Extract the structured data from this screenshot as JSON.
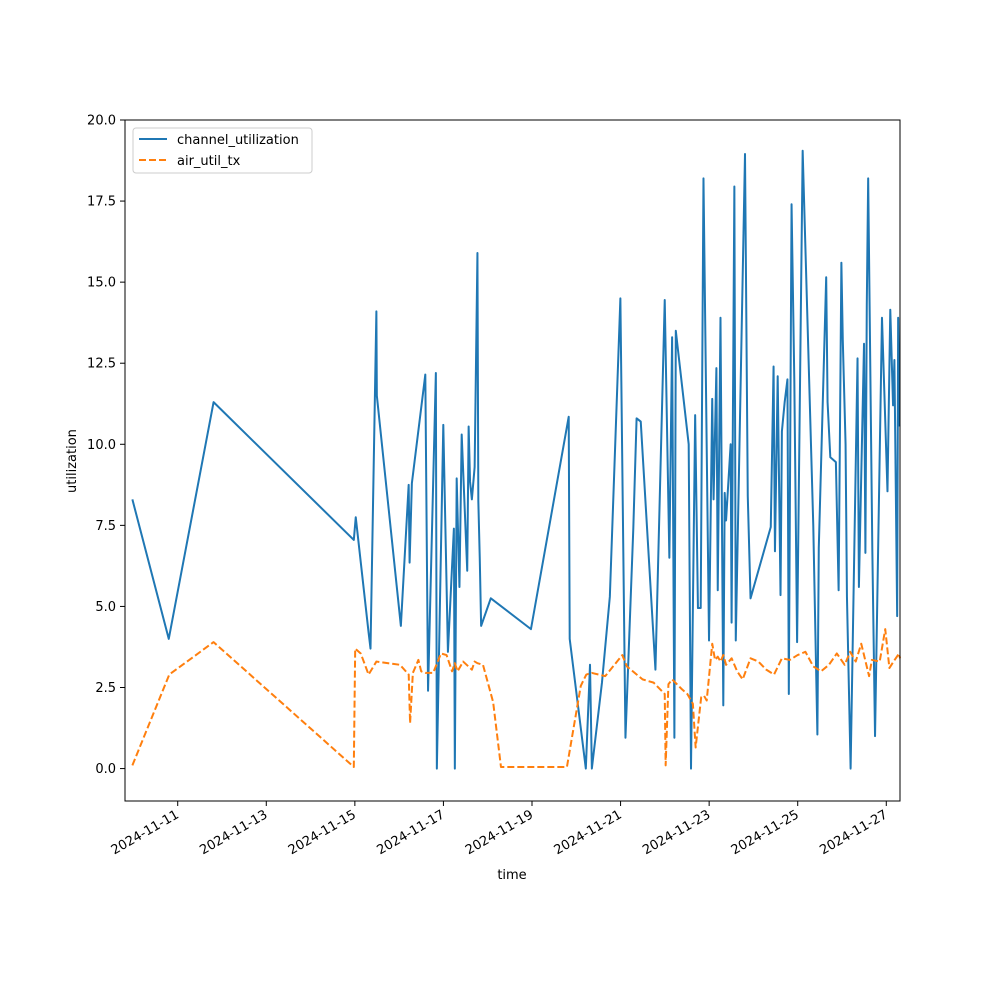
{
  "chart_data": {
    "type": "line",
    "xlabel": "time",
    "ylabel": "utilization",
    "xlim": [
      "2024-11-09T19:26",
      "2024-11-27T07:26"
    ],
    "ylim": [
      -1.0,
      20.0
    ],
    "x_ticks": [
      "2024-11-11",
      "2024-11-13",
      "2024-11-15",
      "2024-11-17",
      "2024-11-19",
      "2024-11-21",
      "2024-11-23",
      "2024-11-25",
      "2024-11-27"
    ],
    "y_ticks": [
      "0.0",
      "2.5",
      "5.0",
      "7.5",
      "10.0",
      "12.5",
      "15.0",
      "17.5",
      "20.0"
    ],
    "legend_position": "upper-left",
    "grid": false,
    "series": [
      {
        "name": "channel_utilization",
        "color": "#1f77b4",
        "dash": "solid",
        "points": [
          [
            "2024-11-09T23:26",
            8.3
          ],
          [
            "2024-11-10T19:09",
            4.0
          ],
          [
            "2024-11-11T19:26",
            11.3
          ],
          [
            "2024-11-14T23:26",
            7.05
          ],
          [
            "2024-11-15T00:29",
            7.75
          ],
          [
            "2024-11-15T07:26",
            4.2
          ],
          [
            "2024-11-15T08:29",
            3.7
          ],
          [
            "2024-11-15T11:40",
            14.1
          ],
          [
            "2024-11-15T11:55",
            11.5
          ],
          [
            "2024-11-16T00:56",
            4.4
          ],
          [
            "2024-11-16T05:10",
            8.75
          ],
          [
            "2024-11-16T05:40",
            6.35
          ],
          [
            "2024-11-16T06:54",
            8.8
          ],
          [
            "2024-11-16T14:11",
            12.15
          ],
          [
            "2024-11-16T15:40",
            2.4
          ],
          [
            "2024-11-16T19:54",
            12.2
          ],
          [
            "2024-11-16T20:26",
            0.0
          ],
          [
            "2024-11-16T23:56",
            10.6
          ],
          [
            "2024-11-17T02:26",
            3.6
          ],
          [
            "2024-11-17T05:40",
            7.4
          ],
          [
            "2024-11-17T06:11",
            0.0
          ],
          [
            "2024-11-17T07:11",
            8.95
          ],
          [
            "2024-11-17T08:41",
            5.6
          ],
          [
            "2024-11-17T09:54",
            10.3
          ],
          [
            "2024-11-17T12:54",
            6.1
          ],
          [
            "2024-11-17T13:40",
            10.55
          ],
          [
            "2024-11-17T14:26",
            8.85
          ],
          [
            "2024-11-17T15:25",
            8.3
          ],
          [
            "2024-11-17T16:55",
            9.3
          ],
          [
            "2024-11-17T18:26",
            15.9
          ],
          [
            "2024-11-17T18:55",
            8.25
          ],
          [
            "2024-11-17T19:41",
            6.5
          ],
          [
            "2024-11-17T20:26",
            4.4
          ],
          [
            "2024-11-18T01:40",
            5.25
          ],
          [
            "2024-11-18T23:26",
            4.3
          ],
          [
            "2024-11-19T19:54",
            10.85
          ],
          [
            "2024-11-19T20:26",
            4.0
          ],
          [
            "2024-11-20T05:10",
            0.0
          ],
          [
            "2024-11-20T07:26",
            3.2
          ],
          [
            "2024-11-20T08:26",
            0.0
          ],
          [
            "2024-11-20T13:55",
            2.65
          ],
          [
            "2024-11-20T18:11",
            5.3
          ],
          [
            "2024-11-20T23:54",
            14.5
          ],
          [
            "2024-11-21T02:39",
            0.95
          ],
          [
            "2024-11-21T06:54",
            7.4
          ],
          [
            "2024-11-21T08:41",
            10.8
          ],
          [
            "2024-11-21T10:56",
            10.7
          ],
          [
            "2024-11-21T18:54",
            3.05
          ],
          [
            "2024-11-21T23:56",
            14.45
          ],
          [
            "2024-11-22T02:26",
            6.5
          ],
          [
            "2024-11-22T03:56",
            13.3
          ],
          [
            "2024-11-22T05:10",
            0.95
          ],
          [
            "2024-11-22T05:56",
            13.5
          ],
          [
            "2024-11-22T12:55",
            10.0
          ],
          [
            "2024-11-22T14:10",
            0.0
          ],
          [
            "2024-11-22T16:25",
            10.9
          ],
          [
            "2024-11-22T17:56",
            4.95
          ],
          [
            "2024-11-22T19:26",
            4.95
          ],
          [
            "2024-11-22T20:56",
            18.2
          ],
          [
            "2024-11-22T23:56",
            3.95
          ],
          [
            "2024-11-23T01:40",
            11.4
          ],
          [
            "2024-11-23T02:24",
            8.3
          ],
          [
            "2024-11-23T03:56",
            12.35
          ],
          [
            "2024-11-23T04:40",
            5.5
          ],
          [
            "2024-11-23T06:09",
            13.9
          ],
          [
            "2024-11-23T07:40",
            1.95
          ],
          [
            "2024-11-23T08:26",
            8.5
          ],
          [
            "2024-11-23T09:10",
            7.65
          ],
          [
            "2024-11-23T11:39",
            10.0
          ],
          [
            "2024-11-23T12:10",
            4.5
          ],
          [
            "2024-11-23T13:40",
            17.95
          ],
          [
            "2024-11-23T14:26",
            3.95
          ],
          [
            "2024-11-23T19:26",
            18.95
          ],
          [
            "2024-11-23T20:56",
            8.4
          ],
          [
            "2024-11-23T22:26",
            5.25
          ],
          [
            "2024-11-24T09:24",
            7.45
          ],
          [
            "2024-11-24T10:55",
            12.4
          ],
          [
            "2024-11-24T11:40",
            6.7
          ],
          [
            "2024-11-24T13:09",
            12.1
          ],
          [
            "2024-11-24T14:41",
            5.35
          ],
          [
            "2024-11-24T15:26",
            10.4
          ],
          [
            "2024-11-24T16:56",
            11.3
          ],
          [
            "2024-11-24T18:26",
            12.0
          ],
          [
            "2024-11-24T19:11",
            2.3
          ],
          [
            "2024-11-24T20:40",
            17.4
          ],
          [
            "2024-11-24T22:09",
            12.0
          ],
          [
            "2024-11-24T23:40",
            3.9
          ],
          [
            "2024-11-25T02:41",
            19.05
          ],
          [
            "2024-11-25T08:26",
            7.5
          ],
          [
            "2024-11-25T10:40",
            1.05
          ],
          [
            "2024-11-25T11:25",
            6.8
          ],
          [
            "2024-11-25T15:26",
            15.15
          ],
          [
            "2024-11-25T16:11",
            11.3
          ],
          [
            "2024-11-25T17:40",
            9.6
          ],
          [
            "2024-11-25T20:41",
            9.45
          ],
          [
            "2024-11-25T22:10",
            5.5
          ],
          [
            "2024-11-25T23:40",
            15.6
          ],
          [
            "2024-11-26T00:26",
            13.2
          ],
          [
            "2024-11-26T01:56",
            10.0
          ],
          [
            "2024-11-26T02:41",
            5.3
          ],
          [
            "2024-11-26T04:40",
            0.0
          ],
          [
            "2024-11-26T08:25",
            12.65
          ],
          [
            "2024-11-26T09:10",
            5.6
          ],
          [
            "2024-11-26T11:56",
            13.1
          ],
          [
            "2024-11-26T12:41",
            6.65
          ],
          [
            "2024-11-26T13:26",
            14.3
          ],
          [
            "2024-11-26T14:11",
            18.2
          ],
          [
            "2024-11-26T14:55",
            14.5
          ],
          [
            "2024-11-26T16:26",
            6.75
          ],
          [
            "2024-11-26T17:54",
            1.0
          ],
          [
            "2024-11-26T21:40",
            13.9
          ],
          [
            "2024-11-27T00:39",
            8.55
          ],
          [
            "2024-11-27T02:10",
            14.15
          ],
          [
            "2024-11-27T03:40",
            11.2
          ],
          [
            "2024-11-27T04:24",
            12.6
          ],
          [
            "2024-11-27T05:54",
            4.7
          ],
          [
            "2024-11-27T06:26",
            13.9
          ],
          [
            "2024-11-27T07:11",
            10.55
          ]
        ]
      },
      {
        "name": "air_util_tx",
        "color": "#ff7f0e",
        "dash": "dashed",
        "points": [
          [
            "2024-11-09T23:26",
            0.1
          ],
          [
            "2024-11-10T19:26",
            2.9
          ],
          [
            "2024-11-11T19:26",
            3.9
          ],
          [
            "2024-11-14T23:26",
            0.05
          ],
          [
            "2024-11-15T00:11",
            3.7
          ],
          [
            "2024-11-15T03:11",
            3.55
          ],
          [
            "2024-11-15T07:26",
            2.9
          ],
          [
            "2024-11-15T11:41",
            3.3
          ],
          [
            "2024-11-16T00:26",
            3.2
          ],
          [
            "2024-11-16T05:11",
            2.9
          ],
          [
            "2024-11-16T05:56",
            1.4
          ],
          [
            "2024-11-16T07:26",
            2.95
          ],
          [
            "2024-11-16T10:26",
            3.35
          ],
          [
            "2024-11-16T11:56",
            3.0
          ],
          [
            "2024-11-16T14:11",
            2.95
          ],
          [
            "2024-11-16T18:26",
            2.95
          ],
          [
            "2024-11-16T22:41",
            3.55
          ],
          [
            "2024-11-17T01:41",
            3.5
          ],
          [
            "2024-11-17T04:41",
            3.0
          ],
          [
            "2024-11-17T06:11",
            3.25
          ],
          [
            "2024-11-17T07:41",
            3.0
          ],
          [
            "2024-11-17T10:41",
            3.3
          ],
          [
            "2024-11-17T15:26",
            3.05
          ],
          [
            "2024-11-17T16:56",
            3.3
          ],
          [
            "2024-11-17T18:26",
            3.25
          ],
          [
            "2024-11-17T21:26",
            3.2
          ],
          [
            "2024-11-18T02:56",
            2.05
          ],
          [
            "2024-11-18T07:11",
            0.05
          ],
          [
            "2024-11-19T18:56",
            0.05
          ],
          [
            "2024-11-20T02:26",
            2.55
          ],
          [
            "2024-11-20T05:26",
            2.9
          ],
          [
            "2024-11-20T08:26",
            2.95
          ],
          [
            "2024-11-20T15:41",
            2.85
          ],
          [
            "2024-11-21T00:56",
            3.5
          ],
          [
            "2024-11-21T03:26",
            3.15
          ],
          [
            "2024-11-21T11:56",
            2.75
          ],
          [
            "2024-11-21T17:56",
            2.65
          ],
          [
            "2024-11-21T23:56",
            2.3
          ],
          [
            "2024-11-22T00:26",
            0.1
          ],
          [
            "2024-11-22T01:56",
            2.6
          ],
          [
            "2024-11-22T03:56",
            2.75
          ],
          [
            "2024-11-22T09:11",
            2.45
          ],
          [
            "2024-11-22T12:11",
            2.3
          ],
          [
            "2024-11-22T15:11",
            2.0
          ],
          [
            "2024-11-22T16:41",
            0.65
          ],
          [
            "2024-11-22T19:41",
            2.2
          ],
          [
            "2024-11-22T21:11",
            2.25
          ],
          [
            "2024-11-22T22:41",
            2.1
          ],
          [
            "2024-11-23T01:41",
            3.85
          ],
          [
            "2024-11-23T03:11",
            3.35
          ],
          [
            "2024-11-23T04:41",
            3.45
          ],
          [
            "2024-11-23T06:11",
            3.3
          ],
          [
            "2024-11-23T07:41",
            3.5
          ],
          [
            "2024-11-23T09:11",
            3.2
          ],
          [
            "2024-11-23T12:11",
            3.4
          ],
          [
            "2024-11-23T15:11",
            3.0
          ],
          [
            "2024-11-23T18:11",
            2.75
          ],
          [
            "2024-11-23T22:26",
            3.4
          ],
          [
            "2024-11-24T02:41",
            3.3
          ],
          [
            "2024-11-24T06:56",
            3.05
          ],
          [
            "2024-11-24T11:11",
            2.9
          ],
          [
            "2024-11-24T15:26",
            3.4
          ],
          [
            "2024-11-24T19:41",
            3.35
          ],
          [
            "2024-11-24T23:56",
            3.5
          ],
          [
            "2024-11-25T04:11",
            3.6
          ],
          [
            "2024-11-25T08:26",
            3.15
          ],
          [
            "2024-11-25T12:41",
            3.0
          ],
          [
            "2024-11-25T16:56",
            3.2
          ],
          [
            "2024-11-25T21:11",
            3.55
          ],
          [
            "2024-11-26T01:26",
            3.2
          ],
          [
            "2024-11-26T04:26",
            3.6
          ],
          [
            "2024-11-26T07:26",
            3.3
          ],
          [
            "2024-11-26T10:26",
            3.85
          ],
          [
            "2024-11-26T14:41",
            2.85
          ],
          [
            "2024-11-26T16:11",
            3.35
          ],
          [
            "2024-11-26T20:26",
            3.3
          ],
          [
            "2024-11-26T23:26",
            4.3
          ],
          [
            "2024-11-27T01:41",
            3.1
          ],
          [
            "2024-11-27T03:56",
            3.3
          ],
          [
            "2024-11-27T06:56",
            3.55
          ],
          [
            "2024-11-27T07:26",
            3.4
          ]
        ]
      }
    ]
  }
}
